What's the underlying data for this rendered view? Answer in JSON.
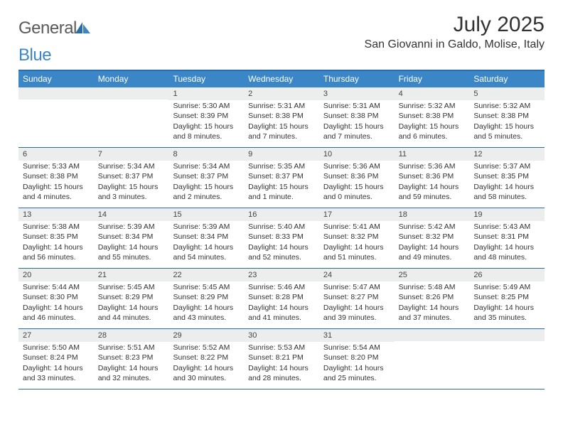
{
  "logo": {
    "text1": "General",
    "text2": "Blue"
  },
  "title": "July 2025",
  "location": "San Giovanni in Galdo, Molise, Italy",
  "colors": {
    "header_bg": "#3b86c6",
    "border": "#2a6ca8",
    "daynum_bg": "#eceded",
    "text": "#333333"
  },
  "dow": [
    "Sunday",
    "Monday",
    "Tuesday",
    "Wednesday",
    "Thursday",
    "Friday",
    "Saturday"
  ],
  "weeks": [
    [
      null,
      null,
      {
        "n": "1",
        "sr": "Sunrise: 5:30 AM",
        "ss": "Sunset: 8:39 PM",
        "d1": "Daylight: 15 hours",
        "d2": "and 8 minutes."
      },
      {
        "n": "2",
        "sr": "Sunrise: 5:31 AM",
        "ss": "Sunset: 8:38 PM",
        "d1": "Daylight: 15 hours",
        "d2": "and 7 minutes."
      },
      {
        "n": "3",
        "sr": "Sunrise: 5:31 AM",
        "ss": "Sunset: 8:38 PM",
        "d1": "Daylight: 15 hours",
        "d2": "and 7 minutes."
      },
      {
        "n": "4",
        "sr": "Sunrise: 5:32 AM",
        "ss": "Sunset: 8:38 PM",
        "d1": "Daylight: 15 hours",
        "d2": "and 6 minutes."
      },
      {
        "n": "5",
        "sr": "Sunrise: 5:32 AM",
        "ss": "Sunset: 8:38 PM",
        "d1": "Daylight: 15 hours",
        "d2": "and 5 minutes."
      }
    ],
    [
      {
        "n": "6",
        "sr": "Sunrise: 5:33 AM",
        "ss": "Sunset: 8:38 PM",
        "d1": "Daylight: 15 hours",
        "d2": "and 4 minutes."
      },
      {
        "n": "7",
        "sr": "Sunrise: 5:34 AM",
        "ss": "Sunset: 8:37 PM",
        "d1": "Daylight: 15 hours",
        "d2": "and 3 minutes."
      },
      {
        "n": "8",
        "sr": "Sunrise: 5:34 AM",
        "ss": "Sunset: 8:37 PM",
        "d1": "Daylight: 15 hours",
        "d2": "and 2 minutes."
      },
      {
        "n": "9",
        "sr": "Sunrise: 5:35 AM",
        "ss": "Sunset: 8:37 PM",
        "d1": "Daylight: 15 hours",
        "d2": "and 1 minute."
      },
      {
        "n": "10",
        "sr": "Sunrise: 5:36 AM",
        "ss": "Sunset: 8:36 PM",
        "d1": "Daylight: 15 hours",
        "d2": "and 0 minutes."
      },
      {
        "n": "11",
        "sr": "Sunrise: 5:36 AM",
        "ss": "Sunset: 8:36 PM",
        "d1": "Daylight: 14 hours",
        "d2": "and 59 minutes."
      },
      {
        "n": "12",
        "sr": "Sunrise: 5:37 AM",
        "ss": "Sunset: 8:35 PM",
        "d1": "Daylight: 14 hours",
        "d2": "and 58 minutes."
      }
    ],
    [
      {
        "n": "13",
        "sr": "Sunrise: 5:38 AM",
        "ss": "Sunset: 8:35 PM",
        "d1": "Daylight: 14 hours",
        "d2": "and 56 minutes."
      },
      {
        "n": "14",
        "sr": "Sunrise: 5:39 AM",
        "ss": "Sunset: 8:34 PM",
        "d1": "Daylight: 14 hours",
        "d2": "and 55 minutes."
      },
      {
        "n": "15",
        "sr": "Sunrise: 5:39 AM",
        "ss": "Sunset: 8:34 PM",
        "d1": "Daylight: 14 hours",
        "d2": "and 54 minutes."
      },
      {
        "n": "16",
        "sr": "Sunrise: 5:40 AM",
        "ss": "Sunset: 8:33 PM",
        "d1": "Daylight: 14 hours",
        "d2": "and 52 minutes."
      },
      {
        "n": "17",
        "sr": "Sunrise: 5:41 AM",
        "ss": "Sunset: 8:32 PM",
        "d1": "Daylight: 14 hours",
        "d2": "and 51 minutes."
      },
      {
        "n": "18",
        "sr": "Sunrise: 5:42 AM",
        "ss": "Sunset: 8:32 PM",
        "d1": "Daylight: 14 hours",
        "d2": "and 49 minutes."
      },
      {
        "n": "19",
        "sr": "Sunrise: 5:43 AM",
        "ss": "Sunset: 8:31 PM",
        "d1": "Daylight: 14 hours",
        "d2": "and 48 minutes."
      }
    ],
    [
      {
        "n": "20",
        "sr": "Sunrise: 5:44 AM",
        "ss": "Sunset: 8:30 PM",
        "d1": "Daylight: 14 hours",
        "d2": "and 46 minutes."
      },
      {
        "n": "21",
        "sr": "Sunrise: 5:45 AM",
        "ss": "Sunset: 8:29 PM",
        "d1": "Daylight: 14 hours",
        "d2": "and 44 minutes."
      },
      {
        "n": "22",
        "sr": "Sunrise: 5:45 AM",
        "ss": "Sunset: 8:29 PM",
        "d1": "Daylight: 14 hours",
        "d2": "and 43 minutes."
      },
      {
        "n": "23",
        "sr": "Sunrise: 5:46 AM",
        "ss": "Sunset: 8:28 PM",
        "d1": "Daylight: 14 hours",
        "d2": "and 41 minutes."
      },
      {
        "n": "24",
        "sr": "Sunrise: 5:47 AM",
        "ss": "Sunset: 8:27 PM",
        "d1": "Daylight: 14 hours",
        "d2": "and 39 minutes."
      },
      {
        "n": "25",
        "sr": "Sunrise: 5:48 AM",
        "ss": "Sunset: 8:26 PM",
        "d1": "Daylight: 14 hours",
        "d2": "and 37 minutes."
      },
      {
        "n": "26",
        "sr": "Sunrise: 5:49 AM",
        "ss": "Sunset: 8:25 PM",
        "d1": "Daylight: 14 hours",
        "d2": "and 35 minutes."
      }
    ],
    [
      {
        "n": "27",
        "sr": "Sunrise: 5:50 AM",
        "ss": "Sunset: 8:24 PM",
        "d1": "Daylight: 14 hours",
        "d2": "and 33 minutes."
      },
      {
        "n": "28",
        "sr": "Sunrise: 5:51 AM",
        "ss": "Sunset: 8:23 PM",
        "d1": "Daylight: 14 hours",
        "d2": "and 32 minutes."
      },
      {
        "n": "29",
        "sr": "Sunrise: 5:52 AM",
        "ss": "Sunset: 8:22 PM",
        "d1": "Daylight: 14 hours",
        "d2": "and 30 minutes."
      },
      {
        "n": "30",
        "sr": "Sunrise: 5:53 AM",
        "ss": "Sunset: 8:21 PM",
        "d1": "Daylight: 14 hours",
        "d2": "and 28 minutes."
      },
      {
        "n": "31",
        "sr": "Sunrise: 5:54 AM",
        "ss": "Sunset: 8:20 PM",
        "d1": "Daylight: 14 hours",
        "d2": "and 25 minutes."
      },
      null,
      null
    ]
  ]
}
